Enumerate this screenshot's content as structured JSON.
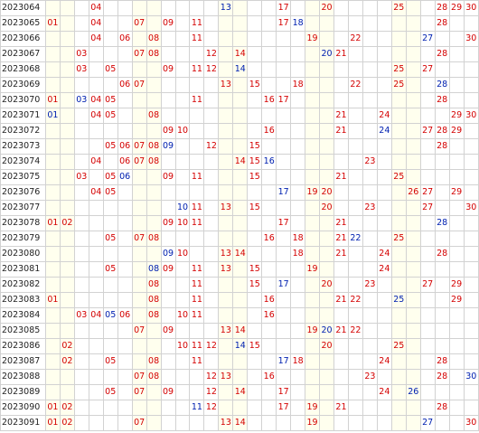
{
  "rows": [
    {
      "period": "2023064",
      "numbers": [
        "04",
        "13",
        "17",
        "20",
        "25",
        "28",
        "29",
        "30"
      ]
    },
    {
      "period": "2023065",
      "numbers": [
        "01",
        "04",
        "07",
        "09",
        "11",
        "17",
        "18",
        "28"
      ]
    },
    {
      "period": "2023066",
      "numbers": [
        "04",
        "06",
        "08",
        "11",
        "19",
        "22",
        "27",
        "30"
      ]
    },
    {
      "period": "2023067",
      "numbers": [
        "03",
        "07",
        "08",
        "12",
        "14",
        "20",
        "21",
        "28"
      ]
    },
    {
      "period": "2023068",
      "numbers": [
        "03",
        "05",
        "09",
        "11",
        "12",
        "14",
        "25",
        "27"
      ]
    },
    {
      "period": "2023069",
      "numbers": [
        "06",
        "07",
        "13",
        "15",
        "18",
        "22",
        "25",
        "28"
      ]
    },
    {
      "period": "2023070",
      "numbers": [
        "01",
        "03",
        "04",
        "05",
        "11",
        "16",
        "17",
        "28"
      ]
    },
    {
      "period": "2023071",
      "numbers": [
        "01",
        "04",
        "05",
        "08",
        "21",
        "24",
        "29",
        "30"
      ]
    },
    {
      "period": "2023072",
      "numbers": [
        "09",
        "10",
        "16",
        "21",
        "24",
        "27",
        "28",
        "29"
      ]
    },
    {
      "period": "2023073",
      "numbers": [
        "05",
        "06",
        "07",
        "08",
        "09",
        "12",
        "15",
        "28"
      ]
    },
    {
      "period": "2023074",
      "numbers": [
        "04",
        "06",
        "07",
        "08",
        "14",
        "15",
        "16",
        "23"
      ]
    },
    {
      "period": "2023075",
      "numbers": [
        "03",
        "05",
        "06",
        "09",
        "11",
        "15",
        "21",
        "25"
      ]
    },
    {
      "period": "2023076",
      "numbers": [
        "04",
        "05",
        "17",
        "19",
        "20",
        "26",
        "27",
        "29"
      ]
    },
    {
      "period": "2023077",
      "numbers": [
        "10",
        "11",
        "13",
        "15",
        "20",
        "23",
        "27",
        "30"
      ]
    },
    {
      "period": "2023078",
      "numbers": [
        "01",
        "02",
        "09",
        "10",
        "11",
        "17",
        "21",
        "28"
      ]
    },
    {
      "period": "2023079",
      "numbers": [
        "05",
        "07",
        "08",
        "16",
        "18",
        "21",
        "22",
        "25"
      ]
    },
    {
      "period": "2023080",
      "numbers": [
        "09",
        "10",
        "13",
        "14",
        "18",
        "21",
        "24",
        "28"
      ]
    },
    {
      "period": "2023081",
      "numbers": [
        "05",
        "08",
        "09",
        "11",
        "13",
        "15",
        "19",
        "24"
      ]
    },
    {
      "period": "2023082",
      "numbers": [
        "08",
        "11",
        "15",
        "17",
        "20",
        "23",
        "27",
        "29"
      ]
    },
    {
      "period": "2023083",
      "numbers": [
        "01",
        "08",
        "11",
        "16",
        "21",
        "22",
        "25",
        "29"
      ]
    },
    {
      "period": "2023084",
      "numbers": [
        "03",
        "04",
        "05",
        "06",
        "08",
        "10",
        "11",
        "16"
      ]
    },
    {
      "period": "2023085",
      "numbers": [
        "07",
        "09",
        "13",
        "14",
        "19",
        "20",
        "21",
        "22"
      ]
    },
    {
      "period": "2023086",
      "numbers": [
        "02",
        "10",
        "11",
        "12",
        "14",
        "15",
        "20",
        "25"
      ]
    },
    {
      "period": "2023087",
      "numbers": [
        "02",
        "05",
        "08",
        "11",
        "17",
        "18",
        "24",
        "28"
      ]
    },
    {
      "period": "2023088",
      "numbers": [
        "07",
        "08",
        "12",
        "13",
        "16",
        "23",
        "28",
        "30"
      ]
    },
    {
      "period": "2023089",
      "numbers": [
        "05",
        "07",
        "09",
        "12",
        "14",
        "17",
        "24",
        "26"
      ]
    },
    {
      "period": "2023090",
      "numbers": [
        "01",
        "02",
        "11",
        "12",
        "17",
        "19",
        "21",
        "28"
      ]
    },
    {
      "period": "2023091",
      "numbers": [
        "01",
        "02",
        "07",
        "13",
        "14",
        "19",
        "27",
        "30"
      ]
    }
  ],
  "blue_numbers": {
    "2023064": [
      "13"
    ],
    "2023065": [
      "18"
    ],
    "2023066": [
      "27"
    ],
    "2023067": [
      "20"
    ],
    "2023068": [
      "14"
    ],
    "2023069": [
      "28"
    ],
    "2023070": [
      "03"
    ],
    "2023071": [
      "01"
    ],
    "2023072": [
      "24"
    ],
    "2023073": [
      "09"
    ],
    "2023074": [
      "16"
    ],
    "2023075": [
      "06"
    ],
    "2023076": [
      "17"
    ],
    "2023077": [
      "10"
    ],
    "2023078": [
      "28"
    ],
    "2023079": [
      "22"
    ],
    "2023080": [
      "09"
    ],
    "2023081": [
      "08"
    ],
    "2023082": [
      "17"
    ],
    "2023083": [
      "25"
    ],
    "2023084": [
      "05"
    ],
    "2023085": [
      "20"
    ],
    "2023086": [
      "14"
    ],
    "2023087": [
      "17"
    ],
    "2023088": [
      "30"
    ],
    "2023089": [
      "26"
    ],
    "2023090": [
      "11"
    ],
    "2023091": [
      "27"
    ]
  },
  "band_columns": [
    1,
    2,
    7,
    8,
    13,
    14,
    19,
    20,
    25,
    26
  ],
  "column_count": 30,
  "colors": {
    "band": "#ffffee",
    "red": "#d40000",
    "blue": "#0020b0",
    "grid_line": "#d2d2d2"
  }
}
